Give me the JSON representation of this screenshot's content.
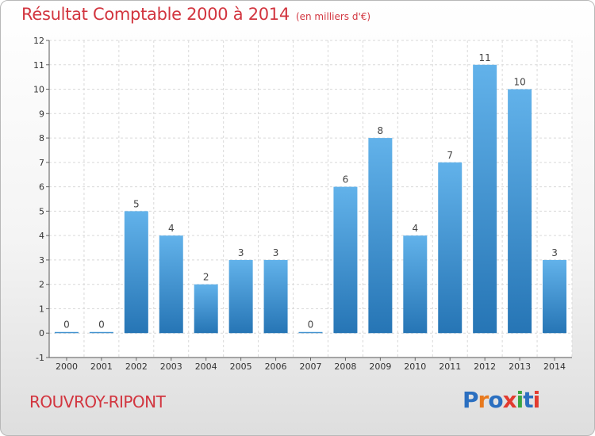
{
  "header": {
    "title": "Résultat Comptable 2000 à 2014",
    "subtitle": "(en milliers d'€)"
  },
  "footer": {
    "place": "ROUVROY-RIPONT",
    "logo": "Proxiti"
  },
  "colors": {
    "title": "#d2353f",
    "bar_light": "#62b2ea",
    "bar_dark": "#2675b5",
    "logo_letters": [
      "#2b6fc0",
      "#e87a1f",
      "#2b6fc0",
      "#e23b2f",
      "#3aa541",
      "#2b6fc0",
      "#e23b2f"
    ]
  },
  "chart_data": {
    "type": "bar",
    "title": "Résultat Comptable 2000 à 2014",
    "unit": "(en milliers d'€)",
    "categories": [
      "2000",
      "2001",
      "2002",
      "2003",
      "2004",
      "2005",
      "2006",
      "2007",
      "2008",
      "2009",
      "2010",
      "2011",
      "2012",
      "2013",
      "2014"
    ],
    "values": [
      0,
      0,
      5,
      4,
      2,
      3,
      3,
      0,
      6,
      8,
      4,
      7,
      11,
      10,
      3
    ],
    "ylim": [
      -1,
      12
    ],
    "yticks": [
      "-1",
      "0",
      "1",
      "2",
      "3",
      "4",
      "5",
      "6",
      "7",
      "8",
      "9",
      "10",
      "11",
      "12"
    ],
    "xlabel": "",
    "ylabel": "",
    "grid": true
  }
}
